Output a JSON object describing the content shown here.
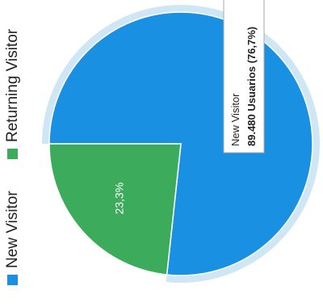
{
  "chart_data": {
    "type": "pie",
    "legend_placement": "left",
    "series": [
      {
        "name": "New Visitor",
        "value": 76.7,
        "display_label": "",
        "color": "#1a90e2"
      },
      {
        "name": "Returning Visitor",
        "value": 23.3,
        "display_label": "23,3%",
        "color": "#3cac5c"
      }
    ],
    "highlight_ring_color": "#cfe6f5",
    "tooltip": {
      "title": "New Visitor",
      "value": "89.480 Usuarios (76,7%)"
    }
  }
}
